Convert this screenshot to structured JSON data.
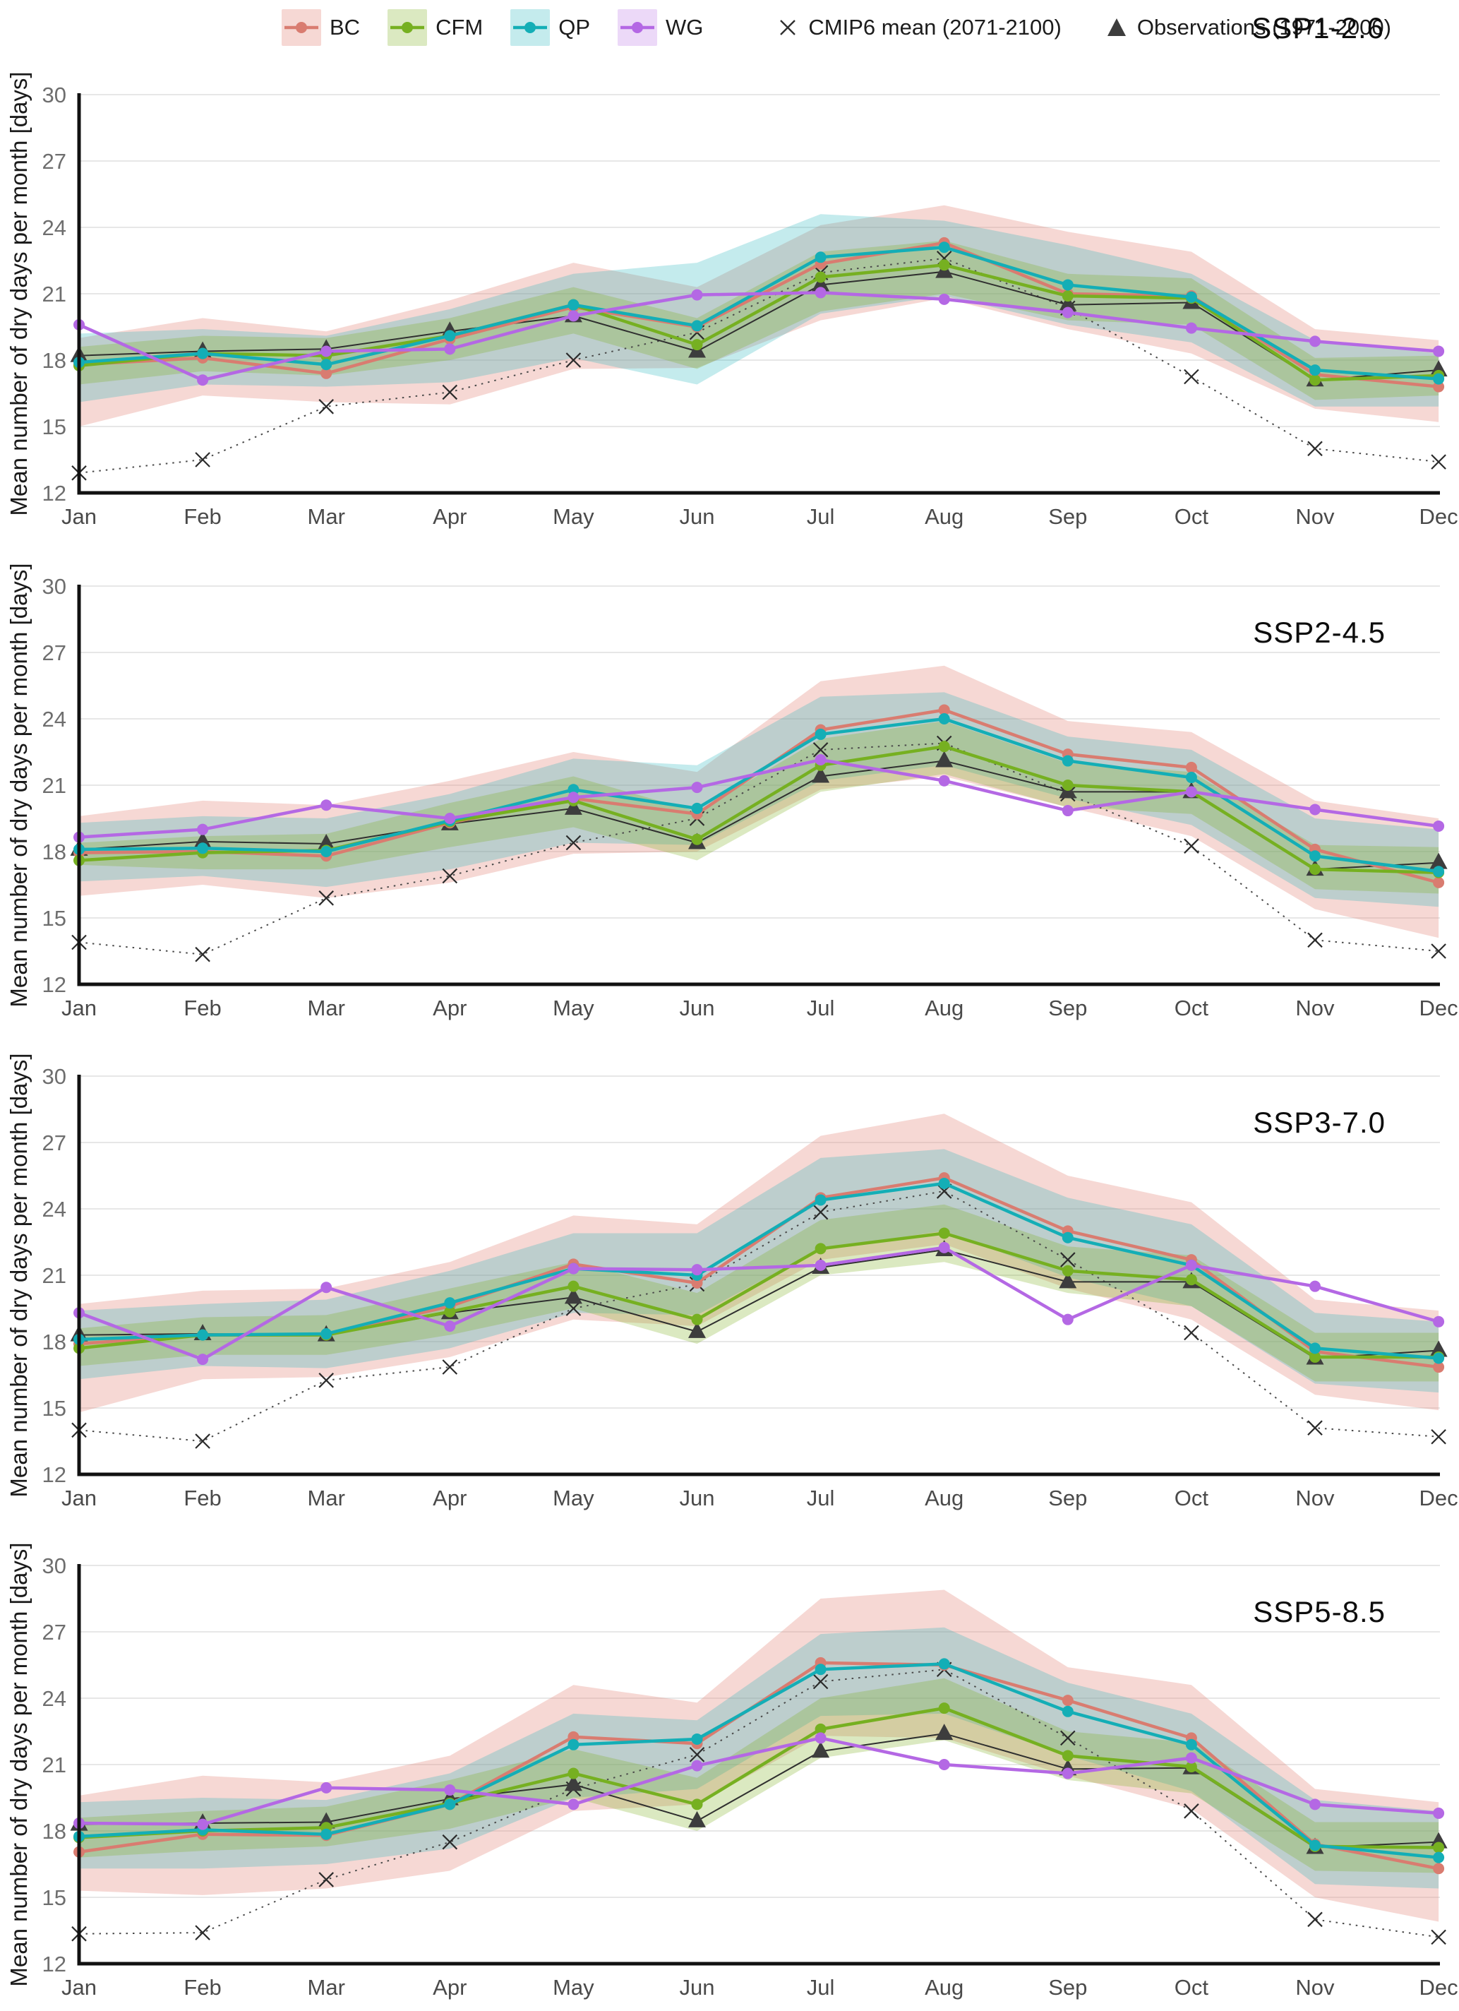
{
  "figure": {
    "background": "#ffffff",
    "grid_color": "#e7e7e7",
    "axis_color": "#111111",
    "tick_label_color": "#6e6e6e",
    "month_label_color": "#4a4a4a",
    "title_color": "#0d0d0d"
  },
  "axis": {
    "y_title": "Mean number of dry days per month [days]",
    "y_ticks": [
      30,
      27,
      24,
      21,
      18,
      15,
      12
    ],
    "y_min": 12,
    "y_max": 30,
    "months": [
      "Jan",
      "Feb",
      "Mar",
      "Apr",
      "May",
      "Jun",
      "Jul",
      "Aug",
      "Sep",
      "Oct",
      "Nov",
      "Dec"
    ]
  },
  "legend": {
    "band_series": [
      {
        "label": "BC",
        "line_color": "#D97C70",
        "band_color": "rgba(228,140,128,0.34)"
      },
      {
        "label": "CFM",
        "line_color": "#76B021",
        "band_color": "rgba(124,176,32,0.28)"
      },
      {
        "label": "QP",
        "line_color": "#14AEB6",
        "band_color": "rgba(20,174,182,0.25)"
      },
      {
        "label": "WG",
        "line_color": "#B468E4",
        "band_color": "rgba(180,104,228,0.25)"
      }
    ],
    "cmip6_label": "CMIP6 mean (2071-2100)",
    "obs_label": "Observations (1971-2000)",
    "marker_color": "#2f2f2f"
  },
  "chart_data": [
    {
      "type": "line",
      "title": "SSP1-2.6",
      "xlabel": "",
      "ylabel": "Mean number of dry days per month [days]",
      "ylim": [
        12,
        30
      ],
      "categories": [
        "Jan",
        "Feb",
        "Mar",
        "Apr",
        "May",
        "Jun",
        "Jul",
        "Aug",
        "Sep",
        "Oct",
        "Nov",
        "Dec"
      ],
      "series": [
        {
          "name": "BC",
          "color": "#D97C70",
          "marker": "circle",
          "values": [
            17.8,
            18.1,
            17.4,
            18.95,
            20.4,
            19.5,
            22.35,
            23.3,
            21.0,
            20.9,
            17.35,
            16.8
          ],
          "band_low": [
            15.0,
            16.4,
            16.1,
            16.0,
            17.6,
            17.65,
            19.8,
            20.8,
            19.4,
            18.3,
            15.8,
            15.2
          ],
          "band_high": [
            19.0,
            19.9,
            19.3,
            20.7,
            22.4,
            21.3,
            24.1,
            25.0,
            23.8,
            22.9,
            19.4,
            18.9
          ],
          "band_color": "rgba(228,140,128,0.34)"
        },
        {
          "name": "QP",
          "color": "#14AEB6",
          "marker": "circle",
          "values": [
            17.9,
            18.3,
            17.8,
            19.1,
            20.5,
            19.55,
            22.65,
            23.1,
            21.4,
            20.85,
            17.55,
            17.15
          ],
          "band_low": [
            16.1,
            16.9,
            16.8,
            17.0,
            18.1,
            16.9,
            20.1,
            20.9,
            19.6,
            18.8,
            15.9,
            15.9
          ],
          "band_high": [
            19.2,
            19.4,
            19.1,
            20.3,
            21.9,
            22.4,
            24.6,
            24.3,
            23.2,
            21.9,
            18.9,
            18.3
          ],
          "band_color": "rgba(20,174,182,0.25)"
        },
        {
          "name": "CFM",
          "color": "#76B021",
          "marker": "circle",
          "values": [
            17.75,
            18.3,
            18.2,
            19.1,
            20.5,
            18.7,
            21.75,
            22.3,
            20.9,
            20.8,
            17.1,
            17.3
          ],
          "band_low": [
            16.9,
            17.5,
            17.3,
            18.0,
            19.2,
            17.6,
            20.2,
            21.0,
            19.8,
            19.6,
            16.2,
            16.4
          ],
          "band_high": [
            18.6,
            19.1,
            19.0,
            19.9,
            21.3,
            19.9,
            22.9,
            23.4,
            21.9,
            21.7,
            18.1,
            18.2
          ],
          "band_color": "rgba(124,176,32,0.28)"
        },
        {
          "name": "WG",
          "color": "#B468E4",
          "marker": "circle",
          "values": [
            19.6,
            17.1,
            18.4,
            18.5,
            20.0,
            20.95,
            21.05,
            20.75,
            20.15,
            19.45,
            18.85,
            18.4
          ]
        },
        {
          "name": "CMIP6 mean (2071-2100)",
          "color": "#3c3c3c",
          "marker": "x",
          "dashed": true,
          "values": [
            12.9,
            13.5,
            15.9,
            16.55,
            18.0,
            19.25,
            21.95,
            22.6,
            20.35,
            17.25,
            14.0,
            13.4
          ]
        },
        {
          "name": "Observations (1971-2000)",
          "color": "#3c3c3c",
          "marker": "triangle",
          "values": [
            18.2,
            18.4,
            18.5,
            19.3,
            20.0,
            18.4,
            21.4,
            22.0,
            20.5,
            20.6,
            17.1,
            17.55
          ]
        }
      ]
    },
    {
      "type": "line",
      "title": "SSP2-4.5",
      "xlabel": "",
      "ylabel": "Mean number of dry days per month [days]",
      "ylim": [
        12,
        30
      ],
      "categories": [
        "Jan",
        "Feb",
        "Mar",
        "Apr",
        "May",
        "Jun",
        "Jul",
        "Aug",
        "Sep",
        "Oct",
        "Nov",
        "Dec"
      ],
      "series": [
        {
          "name": "BC",
          "color": "#D97C70",
          "marker": "circle",
          "values": [
            17.95,
            18.0,
            17.8,
            19.3,
            20.4,
            19.7,
            23.5,
            24.4,
            22.4,
            21.8,
            18.1,
            16.6
          ],
          "band_low": [
            16.0,
            16.5,
            15.9,
            16.6,
            17.9,
            18.0,
            20.8,
            21.4,
            20.0,
            18.7,
            15.4,
            14.1
          ],
          "band_high": [
            19.6,
            20.3,
            20.1,
            21.2,
            22.5,
            21.6,
            25.7,
            26.4,
            23.9,
            23.4,
            20.3,
            19.5
          ],
          "band_color": "rgba(228,140,128,0.34)"
        },
        {
          "name": "QP",
          "color": "#14AEB6",
          "marker": "circle",
          "values": [
            18.1,
            18.15,
            18.0,
            19.4,
            20.8,
            19.95,
            23.3,
            24.0,
            22.1,
            21.35,
            17.8,
            17.1
          ],
          "band_low": [
            16.65,
            16.9,
            16.4,
            17.2,
            18.4,
            18.3,
            21.2,
            21.9,
            20.4,
            19.2,
            15.9,
            15.5
          ],
          "band_high": [
            19.3,
            19.6,
            19.5,
            20.6,
            22.2,
            21.9,
            25.0,
            25.2,
            23.2,
            22.6,
            19.5,
            19.0
          ],
          "band_color": "rgba(20,174,182,0.25)"
        },
        {
          "name": "CFM",
          "color": "#76B021",
          "marker": "circle",
          "values": [
            17.6,
            17.95,
            18.05,
            19.35,
            20.3,
            18.55,
            21.9,
            22.75,
            21.0,
            20.7,
            17.2,
            17.05
          ],
          "band_low": [
            17.4,
            17.2,
            17.2,
            18.2,
            19.1,
            17.6,
            20.7,
            21.5,
            20.0,
            19.7,
            16.3,
            16.1
          ],
          "band_high": [
            18.4,
            18.7,
            18.8,
            20.2,
            21.4,
            19.8,
            23.1,
            23.9,
            22.0,
            21.6,
            18.3,
            18.2
          ],
          "band_color": "rgba(124,176,32,0.28)"
        },
        {
          "name": "WG",
          "color": "#B468E4",
          "marker": "circle",
          "values": [
            18.65,
            19.0,
            20.1,
            19.5,
            20.45,
            20.9,
            22.15,
            21.2,
            19.85,
            20.7,
            19.9,
            19.15
          ]
        },
        {
          "name": "CMIP6 mean (2071-2100)",
          "color": "#3c3c3c",
          "marker": "x",
          "dashed": true,
          "values": [
            13.9,
            13.35,
            15.9,
            16.9,
            18.4,
            19.5,
            22.6,
            22.9,
            20.6,
            18.25,
            14.0,
            13.5
          ]
        },
        {
          "name": "Observations (1971-2000)",
          "color": "#3c3c3c",
          "marker": "triangle",
          "values": [
            18.1,
            18.45,
            18.35,
            19.25,
            19.95,
            18.4,
            21.4,
            22.1,
            20.7,
            20.7,
            17.2,
            17.5
          ]
        }
      ]
    },
    {
      "type": "line",
      "title": "SSP3-7.0",
      "xlabel": "",
      "ylabel": "Mean number of dry days per month [days]",
      "ylim": [
        12,
        30
      ],
      "categories": [
        "Jan",
        "Feb",
        "Mar",
        "Apr",
        "May",
        "Jun",
        "Jul",
        "Aug",
        "Sep",
        "Oct",
        "Nov",
        "Dec"
      ],
      "series": [
        {
          "name": "BC",
          "color": "#D97C70",
          "marker": "circle",
          "values": [
            17.9,
            18.3,
            18.3,
            19.6,
            21.5,
            20.65,
            24.5,
            25.4,
            23.0,
            21.7,
            17.55,
            16.85
          ],
          "band_low": [
            14.8,
            16.3,
            16.4,
            17.3,
            19.0,
            18.7,
            21.7,
            22.4,
            20.4,
            19.0,
            15.6,
            14.9
          ],
          "band_high": [
            19.7,
            20.3,
            20.4,
            21.6,
            23.7,
            23.3,
            27.3,
            28.3,
            25.5,
            24.3,
            19.9,
            19.4
          ],
          "band_color": "rgba(228,140,128,0.34)"
        },
        {
          "name": "QP",
          "color": "#14AEB6",
          "marker": "circle",
          "values": [
            18.1,
            18.3,
            18.35,
            19.75,
            21.3,
            21.0,
            24.4,
            25.15,
            22.7,
            21.45,
            17.7,
            17.25
          ],
          "band_low": [
            16.3,
            16.9,
            16.8,
            17.7,
            19.3,
            19.2,
            22.2,
            23.0,
            20.9,
            19.6,
            16.1,
            15.7
          ],
          "band_high": [
            19.4,
            19.7,
            19.9,
            21.2,
            22.9,
            22.9,
            26.3,
            26.7,
            24.5,
            23.3,
            19.3,
            18.9
          ],
          "band_color": "rgba(20,174,182,0.25)"
        },
        {
          "name": "CFM",
          "color": "#76B021",
          "marker": "circle",
          "values": [
            17.7,
            18.3,
            18.3,
            19.35,
            20.5,
            19.0,
            22.2,
            22.9,
            21.2,
            20.8,
            17.3,
            17.3
          ],
          "band_low": [
            16.9,
            17.4,
            17.4,
            18.3,
            19.5,
            17.9,
            21.0,
            21.6,
            20.2,
            19.6,
            16.2,
            16.2
          ],
          "band_high": [
            18.6,
            19.1,
            19.2,
            20.4,
            21.6,
            20.2,
            23.5,
            24.2,
            22.3,
            21.9,
            18.4,
            18.4
          ],
          "band_color": "rgba(124,176,32,0.28)"
        },
        {
          "name": "WG",
          "color": "#B468E4",
          "marker": "circle",
          "values": [
            19.3,
            17.2,
            20.45,
            18.7,
            21.3,
            21.25,
            21.45,
            22.25,
            19.0,
            21.45,
            20.5,
            18.9
          ]
        },
        {
          "name": "CMIP6 mean (2071-2100)",
          "color": "#3c3c3c",
          "marker": "x",
          "dashed": true,
          "values": [
            14.0,
            13.5,
            16.25,
            16.85,
            19.5,
            20.6,
            23.85,
            24.8,
            21.7,
            18.4,
            14.1,
            13.7
          ]
        },
        {
          "name": "Observations (1971-2000)",
          "color": "#3c3c3c",
          "marker": "triangle",
          "values": [
            18.3,
            18.35,
            18.3,
            19.3,
            20.0,
            18.45,
            21.35,
            22.15,
            20.7,
            20.7,
            17.25,
            17.6
          ]
        }
      ]
    },
    {
      "type": "line",
      "title": "SSP5-8.5",
      "xlabel": "",
      "ylabel": "Mean number of dry days per month [days]",
      "ylim": [
        12,
        30
      ],
      "categories": [
        "Jan",
        "Feb",
        "Mar",
        "Apr",
        "May",
        "Jun",
        "Jul",
        "Aug",
        "Sep",
        "Oct",
        "Nov",
        "Dec"
      ],
      "series": [
        {
          "name": "BC",
          "color": "#D97C70",
          "marker": "circle",
          "values": [
            17.05,
            17.85,
            17.8,
            19.2,
            22.25,
            21.95,
            25.6,
            25.5,
            23.9,
            22.2,
            17.4,
            16.3
          ],
          "band_low": [
            15.3,
            15.1,
            15.4,
            16.2,
            18.9,
            19.2,
            22.3,
            22.2,
            20.5,
            19.0,
            15.0,
            13.9
          ],
          "band_high": [
            19.6,
            20.5,
            20.2,
            21.4,
            24.6,
            23.8,
            28.5,
            28.9,
            25.4,
            24.6,
            19.9,
            19.3
          ],
          "band_color": "rgba(228,140,128,0.34)"
        },
        {
          "name": "QP",
          "color": "#14AEB6",
          "marker": "circle",
          "values": [
            17.75,
            18.05,
            17.85,
            19.2,
            21.9,
            22.15,
            25.3,
            25.55,
            23.4,
            21.9,
            17.35,
            16.8
          ],
          "band_low": [
            16.3,
            16.3,
            16.5,
            17.2,
            19.5,
            19.9,
            23.2,
            23.3,
            21.4,
            19.8,
            15.6,
            15.4
          ],
          "band_high": [
            19.3,
            19.5,
            19.4,
            20.6,
            23.3,
            23.0,
            26.9,
            27.2,
            24.7,
            23.3,
            19.4,
            18.9
          ],
          "band_color": "rgba(20,174,182,0.25)"
        },
        {
          "name": "CFM",
          "color": "#76B021",
          "marker": "circle",
          "values": [
            17.7,
            18.0,
            18.15,
            19.25,
            20.6,
            19.2,
            22.6,
            23.55,
            21.4,
            20.9,
            17.3,
            17.25
          ],
          "band_low": [
            16.8,
            17.1,
            17.3,
            18.1,
            19.5,
            18.0,
            21.3,
            22.1,
            20.3,
            19.7,
            16.2,
            16.1
          ],
          "band_high": [
            18.6,
            18.9,
            19.1,
            20.3,
            21.7,
            20.4,
            24.0,
            24.9,
            22.5,
            22.0,
            18.4,
            18.4
          ],
          "band_color": "rgba(124,176,32,0.28)"
        },
        {
          "name": "WG",
          "color": "#B468E4",
          "marker": "circle",
          "values": [
            18.35,
            18.3,
            19.95,
            19.85,
            19.2,
            20.95,
            22.2,
            21.0,
            20.6,
            21.3,
            19.2,
            18.8
          ]
        },
        {
          "name": "CMIP6 mean (2071-2100)",
          "color": "#3c3c3c",
          "marker": "x",
          "dashed": true,
          "values": [
            13.35,
            13.4,
            15.8,
            17.5,
            19.9,
            21.45,
            24.75,
            25.3,
            22.2,
            18.9,
            14.0,
            13.2
          ]
        },
        {
          "name": "Observations (1971-2000)",
          "color": "#3c3c3c",
          "marker": "triangle",
          "values": [
            18.3,
            18.35,
            18.4,
            19.45,
            20.1,
            18.45,
            21.6,
            22.4,
            20.8,
            20.85,
            17.25,
            17.5
          ]
        }
      ]
    }
  ]
}
